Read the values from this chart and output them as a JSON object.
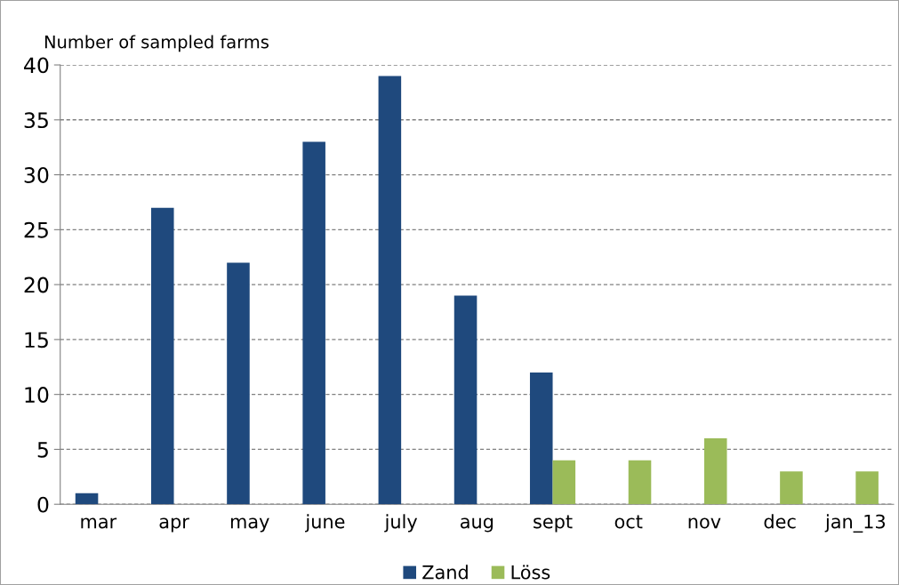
{
  "chart_data": {
    "type": "bar",
    "ylabel": "Number of sampled farms",
    "categories": [
      "mar",
      "apr",
      "may",
      "june",
      "july",
      "aug",
      "sept",
      "oct",
      "nov",
      "dec",
      "jan_13"
    ],
    "series": [
      {
        "name": "Zand",
        "color": "#1f497d",
        "values": [
          1,
          27,
          22,
          33,
          39,
          19,
          12,
          null,
          null,
          null,
          null
        ]
      },
      {
        "name": "Löss",
        "color": "#9bbb59",
        "values": [
          null,
          null,
          null,
          null,
          null,
          null,
          4,
          4,
          6,
          3,
          3
        ]
      }
    ],
    "ylim": [
      0,
      40
    ],
    "yticks": [
      0,
      5,
      10,
      15,
      20,
      25,
      30,
      35,
      40
    ],
    "grid": "y",
    "legend": "bottom"
  }
}
